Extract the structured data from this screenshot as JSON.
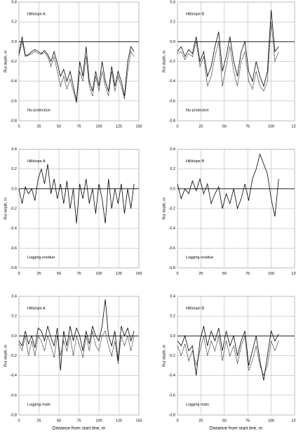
{
  "chart_data": [
    {
      "type": "line",
      "panel_label": "Hillslope A",
      "treatment": "No protection",
      "y_label": "Rut depth, m",
      "x": [
        0,
        4,
        8,
        12,
        16,
        20,
        24,
        28,
        32,
        36,
        40,
        44,
        48,
        52,
        56,
        60,
        64,
        68,
        72,
        76,
        80,
        84,
        88,
        92,
        96,
        100,
        104,
        108,
        112,
        116,
        120,
        124,
        128,
        132,
        136,
        140,
        144
      ],
      "series": [
        {
          "color": "#000000",
          "dash": "solid",
          "values": [
            -0.12,
            0.05,
            -0.14,
            -0.13,
            -0.1,
            -0.08,
            -0.1,
            -0.12,
            -0.09,
            -0.13,
            -0.2,
            -0.1,
            -0.22,
            -0.35,
            -0.28,
            -0.4,
            -0.3,
            -0.45,
            -0.6,
            -0.2,
            -0.35,
            -0.05,
            -0.4,
            -0.5,
            -0.3,
            -0.45,
            -0.2,
            -0.4,
            -0.5,
            -0.25,
            -0.45,
            -0.3,
            -0.4,
            -0.55,
            -0.2,
            -0.05,
            -0.1
          ]
        },
        {
          "color": "#000000",
          "dash": "dotted",
          "values": [
            -0.14,
            0.0,
            -0.15,
            -0.14,
            -0.12,
            -0.1,
            -0.12,
            -0.13,
            -0.11,
            -0.15,
            -0.25,
            -0.15,
            -0.3,
            -0.45,
            -0.35,
            -0.48,
            -0.38,
            -0.5,
            -0.62,
            -0.3,
            -0.4,
            -0.15,
            -0.45,
            -0.55,
            -0.35,
            -0.5,
            -0.3,
            -0.45,
            -0.55,
            -0.3,
            -0.5,
            -0.35,
            -0.45,
            -0.58,
            -0.3,
            -0.1,
            -0.15
          ]
        }
      ],
      "xlim": [
        0,
        150
      ],
      "xticks": [
        0,
        25,
        50,
        75,
        100,
        125,
        150
      ],
      "ylim": [
        -0.8,
        0.4
      ],
      "yticks": [
        -0.8,
        -0.6,
        -0.4,
        -0.2,
        {
          "value": 0,
          "label": "0.0"
        },
        0.2,
        0.4
      ],
      "grid": true
    },
    {
      "type": "line",
      "panel_label": "Hillslope B",
      "treatment": "No protection",
      "y_label": "Rut depth, m",
      "x": [
        0,
        4,
        8,
        12,
        16,
        20,
        24,
        28,
        32,
        36,
        40,
        44,
        48,
        52,
        56,
        60,
        64,
        68,
        72,
        76,
        80,
        84,
        88,
        92,
        96,
        100,
        104,
        108
      ],
      "series": [
        {
          "color": "#000000",
          "dash": "solid",
          "values": [
            -0.1,
            -0.05,
            -0.15,
            -0.08,
            -0.12,
            0.05,
            -0.2,
            -0.1,
            -0.35,
            -0.25,
            -0.05,
            0.1,
            -0.3,
            -0.15,
            0.05,
            -0.2,
            -0.35,
            -0.1,
            0.0,
            -0.3,
            -0.4,
            -0.2,
            -0.35,
            -0.45,
            -0.3,
            0.32,
            -0.1,
            -0.05
          ]
        },
        {
          "color": "#000000",
          "dash": "dotted",
          "values": [
            -0.12,
            -0.1,
            -0.18,
            -0.12,
            -0.15,
            0.0,
            -0.25,
            -0.15,
            -0.45,
            -0.35,
            -0.15,
            0.0,
            -0.45,
            -0.25,
            -0.05,
            -0.3,
            -0.45,
            -0.2,
            -0.1,
            -0.4,
            -0.48,
            -0.3,
            -0.45,
            -0.5,
            -0.4,
            0.2,
            -0.2,
            -0.1
          ]
        }
      ],
      "xlim": [
        0,
        125
      ],
      "xticks": [
        0,
        25,
        50,
        75,
        100,
        125
      ],
      "ylim": [
        -0.8,
        0.4
      ],
      "yticks": [
        -0.8,
        -0.6,
        -0.4,
        -0.2,
        {
          "value": 0,
          "label": "0.0"
        },
        0.2,
        0.4
      ],
      "grid": true
    },
    {
      "type": "line",
      "panel_label": "Hillslope A",
      "treatment": "Logging residue",
      "y_label": "Rut depth, m",
      "x": [
        0,
        4,
        8,
        12,
        16,
        20,
        24,
        28,
        32,
        36,
        40,
        44,
        48,
        52,
        56,
        60,
        64,
        68,
        72,
        76,
        80,
        84,
        88,
        92,
        96,
        100,
        104,
        108,
        112,
        116,
        120,
        124,
        128,
        132,
        136,
        140,
        144
      ],
      "series": [
        {
          "color": "#000000",
          "dash": "solid",
          "values": [
            0.0,
            -0.15,
            0.02,
            -0.05,
            0.0,
            -0.12,
            0.1,
            0.2,
            0.05,
            0.25,
            -0.05,
            0.1,
            -0.1,
            0.05,
            -0.15,
            0.08,
            -0.2,
            0.0,
            -0.35,
            0.05,
            -0.1,
            0.1,
            -0.15,
            0.0,
            -0.25,
            0.05,
            -0.1,
            -0.35,
            0.1,
            -0.2,
            0.0,
            -0.15,
            0.05,
            -0.25,
            0.0,
            -0.2,
            0.05
          ]
        }
      ],
      "xlim": [
        0,
        150
      ],
      "xticks": [
        0,
        25,
        50,
        75,
        100,
        125,
        150
      ],
      "ylim": [
        -0.8,
        0.4
      ],
      "yticks": [
        -0.8,
        -0.6,
        -0.4,
        -0.2,
        {
          "value": 0,
          "label": "0.0"
        },
        0.2,
        0.4
      ],
      "grid": true
    },
    {
      "type": "line",
      "panel_label": "Hillslope B",
      "treatment": "Logging residue",
      "y_label": "Rut depth, m",
      "x": [
        0,
        4,
        8,
        12,
        16,
        20,
        24,
        28,
        32,
        36,
        40,
        44,
        48,
        52,
        56,
        60,
        64,
        68,
        72,
        76,
        80,
        84,
        88,
        92,
        96,
        100,
        104,
        108
      ],
      "series": [
        {
          "color": "#000000",
          "dash": "solid",
          "values": [
            0.05,
            -0.1,
            0.0,
            -0.05,
            0.08,
            -0.02,
            0.1,
            -0.05,
            0.05,
            -0.15,
            -0.05,
            0.02,
            -0.2,
            -0.05,
            -0.15,
            0.0,
            -0.2,
            -0.1,
            0.05,
            -0.12,
            0.1,
            0.2,
            0.35,
            0.25,
            0.15,
            -0.1,
            -0.28,
            0.1
          ]
        }
      ],
      "xlim": [
        0,
        125
      ],
      "xticks": [
        0,
        25,
        50,
        75,
        100,
        125
      ],
      "ylim": [
        -0.8,
        0.4
      ],
      "yticks": [
        -0.8,
        -0.6,
        -0.4,
        -0.2,
        {
          "value": 0,
          "label": "0.0"
        },
        0.2,
        0.4
      ],
      "grid": true
    },
    {
      "type": "line",
      "panel_label": "Hillslope A",
      "treatment": "Logging mats",
      "y_label": "Rut depth, m",
      "x_label": "Distance from start line, m",
      "x": [
        0,
        4,
        8,
        12,
        16,
        20,
        24,
        28,
        32,
        36,
        40,
        44,
        48,
        52,
        56,
        60,
        64,
        68,
        72,
        76,
        80,
        84,
        88,
        92,
        96,
        100,
        104,
        108,
        112,
        116,
        120,
        124,
        128,
        132,
        136,
        140,
        144
      ],
      "series": [
        {
          "color": "#000000",
          "dash": "solid",
          "values": [
            -0.05,
            -0.1,
            0.05,
            -0.08,
            0.0,
            -0.12,
            0.08,
            0.05,
            -0.05,
            0.1,
            -0.02,
            -0.1,
            0.08,
            -0.35,
            0.05,
            -0.1,
            0.1,
            -0.05,
            0.08,
            0.0,
            -0.15,
            0.05,
            -0.08,
            0.1,
            0.0,
            -0.05,
            0.1,
            0.37,
            0.0,
            -0.1,
            0.05,
            -0.25,
            0.1,
            0.0,
            0.08,
            -0.05,
            0.05
          ]
        },
        {
          "color": "#000000",
          "dash": "dotted",
          "values": [
            -0.08,
            -0.15,
            0.0,
            -0.2,
            -0.05,
            -0.2,
            0.0,
            -0.05,
            -0.15,
            0.0,
            -0.1,
            -0.22,
            0.0,
            -0.2,
            -0.05,
            -0.15,
            0.0,
            -0.2,
            0.0,
            -0.1,
            -0.22,
            0.0,
            -0.15,
            0.05,
            -0.1,
            -0.15,
            0.0,
            0.05,
            -0.1,
            -0.2,
            -0.05,
            -0.28,
            0.0,
            -0.1,
            0.0,
            -0.15,
            0.0
          ]
        }
      ],
      "xlim": [
        0,
        150
      ],
      "xticks": [
        0,
        25,
        50,
        75,
        100,
        125,
        150
      ],
      "ylim": [
        -0.8,
        0.4
      ],
      "yticks": [
        -0.8,
        -0.6,
        -0.4,
        -0.2,
        {
          "value": 0,
          "label": "0.0"
        },
        0.2,
        0.4
      ],
      "grid": true
    },
    {
      "type": "line",
      "panel_label": "Hillslope B",
      "treatment": "Logging mats",
      "y_label": "Rut depth, m",
      "x_label": "Distance from start line, m",
      "x": [
        0,
        4,
        8,
        12,
        16,
        20,
        24,
        28,
        32,
        36,
        40,
        44,
        48,
        52,
        56,
        60,
        64,
        68,
        72,
        76,
        80,
        84,
        88,
        92,
        96,
        100,
        104,
        108
      ],
      "series": [
        {
          "color": "#000000",
          "dash": "solid",
          "values": [
            -0.05,
            -0.1,
            0.0,
            -0.15,
            -0.1,
            -0.4,
            -0.05,
            0.1,
            -0.1,
            0.05,
            -0.05,
            0.08,
            -0.15,
            0.05,
            -0.1,
            0.0,
            -0.2,
            -0.05,
            0.05,
            -0.3,
            -0.15,
            0.0,
            -0.25,
            -0.45,
            -0.2,
            0.05,
            -0.05,
            0.02
          ]
        },
        {
          "color": "#000000",
          "dash": "dotted",
          "values": [
            -0.1,
            -0.2,
            -0.08,
            -0.25,
            -0.15,
            -0.3,
            -0.15,
            0.0,
            -0.2,
            -0.05,
            -0.15,
            0.0,
            -0.25,
            -0.05,
            -0.2,
            -0.1,
            -0.28,
            -0.1,
            0.0,
            -0.35,
            -0.25,
            -0.1,
            -0.3,
            -0.4,
            -0.3,
            -0.05,
            -0.15,
            -0.05
          ]
        }
      ],
      "xlim": [
        0,
        125
      ],
      "xticks": [
        0,
        25,
        50,
        75,
        100,
        125
      ],
      "ylim": [
        -0.8,
        0.4
      ],
      "yticks": [
        -0.8,
        -0.6,
        -0.4,
        -0.2,
        {
          "value": 0,
          "label": "0.0"
        },
        0.2,
        0.4
      ],
      "grid": true
    }
  ]
}
